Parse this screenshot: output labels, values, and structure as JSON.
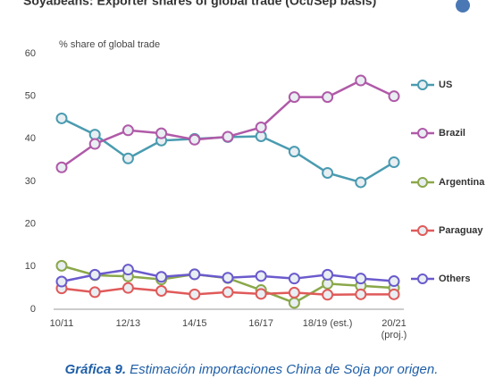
{
  "chart_data": {
    "type": "line",
    "title": "Soyabeans: Exporter shares of global trade (Oct/Sep basis)",
    "y_label": "% share of global trade",
    "categories": [
      "10/11",
      null,
      "12/13",
      null,
      "14/15",
      null,
      "16/17",
      null,
      "18/19 (est.)",
      null,
      "20/21 (proj.)"
    ],
    "series": [
      {
        "name": "US",
        "color": "#4a9bb0",
        "values": [
          44.8,
          41,
          35.4,
          39.6,
          40,
          40.4,
          40.6,
          37,
          32,
          29.8,
          34.5
        ]
      },
      {
        "name": "Brazil",
        "color": "#b05aa8",
        "values": [
          33.3,
          38.8,
          42,
          41.3,
          39.8,
          40.5,
          42.7,
          49.8,
          49.8,
          53.7,
          50
        ]
      },
      {
        "name": "Argentina",
        "color": "#8aa84a",
        "values": [
          10.2,
          8,
          7.7,
          7,
          8.2,
          7.3,
          4.5,
          1.5,
          6,
          5.5,
          5
        ]
      },
      {
        "name": "Paraguay",
        "color": "#e05a5a",
        "values": [
          4.9,
          4,
          5,
          4.3,
          3.5,
          4,
          3.6,
          3.9,
          3.4,
          3.5,
          3.5
        ]
      },
      {
        "name": "Others",
        "color": "#6a5acd",
        "values": [
          6.5,
          8.1,
          9.3,
          7.6,
          8.2,
          7.4,
          7.8,
          7.2,
          8.1,
          7.2,
          6.6
        ]
      }
    ],
    "ylim": [
      0,
      60
    ],
    "yticks": [
      0,
      10,
      20,
      30,
      40,
      50,
      60
    ],
    "grid": false
  },
  "caption": {
    "label": "Gráfica 9.",
    "text": "Estimación importaciones China de Soja por origen."
  }
}
